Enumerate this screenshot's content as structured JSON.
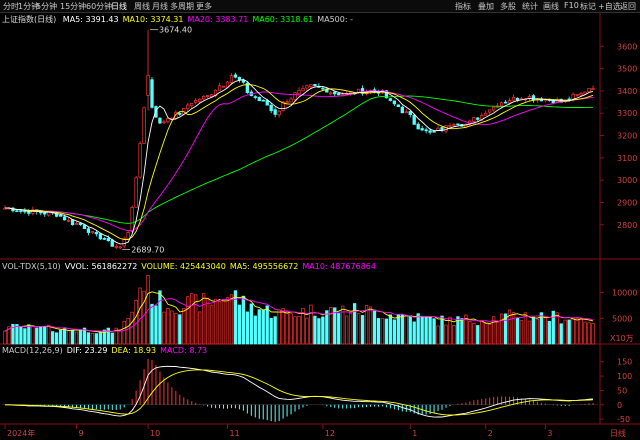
{
  "toolbar": {
    "left": [
      "分时",
      "1分钟",
      "5分钟",
      "15分钟",
      "60分钟",
      "日线",
      "周线",
      "月线",
      "多周期",
      "更多"
    ],
    "active": "日线",
    "right": [
      "指标",
      "叠加",
      "多股",
      "统计",
      "画线",
      "F10",
      "标记",
      "+自选",
      "返回"
    ]
  },
  "main": {
    "title": "上证指数(日线)",
    "ma": [
      {
        "label": "MA5: 3391.43",
        "color": "#ffffff"
      },
      {
        "label": "MA10: 3374.31",
        "color": "#ffff00"
      },
      {
        "label": "MA20: 3383.71",
        "color": "#ff00ff"
      },
      {
        "label": "MA60: 3318.61",
        "color": "#00ff00"
      },
      {
        "label": "MA500: -",
        "color": "#cccccc"
      }
    ],
    "high_label": "3674.40",
    "low_label": "2689.70"
  },
  "vol": {
    "items": [
      {
        "label": "VOL-TDX(5,10)",
        "color": "#cccccc"
      },
      {
        "label": "VVOL: 561862272",
        "color": "#ffffff"
      },
      {
        "label": "VOLUME: 425443040",
        "color": "#ffff00"
      },
      {
        "label": "MA5: 495556672",
        "color": "#ffff00"
      },
      {
        "label": "MA10: 487676864",
        "color": "#ff00ff"
      }
    ],
    "unit": "X10万"
  },
  "macd": {
    "items": [
      {
        "label": "MACD(12,26,9)",
        "color": "#cccccc"
      },
      {
        "label": "DIF: 23.29",
        "color": "#ffffff"
      },
      {
        "label": "DEA: 18.93",
        "color": "#ffff00"
      },
      {
        "label": "MACD: 8.73",
        "color": "#ff00ff"
      }
    ]
  },
  "xaxis": {
    "labels": [
      "2024年",
      "9",
      "10",
      "11",
      "12",
      "1",
      "2",
      "3"
    ],
    "period": "日线"
  },
  "chart_data": {
    "type": "candlestick",
    "title": "上证指数(日线)",
    "price_ticks": [
      2800,
      2900,
      3000,
      3100,
      3200,
      3300,
      3400,
      3500,
      3600
    ],
    "price_ylim": [
      2660,
      3700
    ],
    "volume_ticks": [
      5000,
      10000
    ],
    "volume_ylim": [
      0,
      14000
    ],
    "macd_ticks": [
      -50,
      0,
      50,
      100,
      150
    ],
    "macd_ylim": [
      -60,
      170
    ],
    "high": {
      "value": 3674.4
    },
    "low": {
      "value": 2689.7
    },
    "months": [
      {
        "label": "2024年",
        "start_index": 0
      },
      {
        "label": "9",
        "start_index": 18
      },
      {
        "label": "10",
        "start_index": 36
      },
      {
        "label": "11",
        "start_index": 56
      },
      {
        "label": "12",
        "start_index": 80
      },
      {
        "label": "1",
        "start_index": 102
      },
      {
        "label": "2",
        "start_index": 121
      },
      {
        "label": "3",
        "start_index": 136
      }
    ],
    "anchors": [
      [
        0,
        2875
      ],
      [
        6,
        2860
      ],
      [
        12,
        2850
      ],
      [
        18,
        2805
      ],
      [
        24,
        2745
      ],
      [
        27,
        2710
      ],
      [
        29,
        2700
      ],
      [
        31,
        2770
      ],
      [
        33,
        3000
      ],
      [
        35,
        3330
      ],
      [
        36,
        3450
      ],
      [
        37,
        3330
      ],
      [
        39,
        3250
      ],
      [
        41,
        3280
      ],
      [
        44,
        3300
      ],
      [
        47,
        3350
      ],
      [
        50,
        3370
      ],
      [
        55,
        3430
      ],
      [
        57,
        3470
      ],
      [
        59,
        3445
      ],
      [
        62,
        3380
      ],
      [
        65,
        3350
      ],
      [
        68,
        3300
      ],
      [
        71,
        3360
      ],
      [
        74,
        3395
      ],
      [
        77,
        3420
      ],
      [
        80,
        3410
      ],
      [
        83,
        3390
      ],
      [
        86,
        3385
      ],
      [
        90,
        3400
      ],
      [
        94,
        3400
      ],
      [
        98,
        3340
      ],
      [
        101,
        3300
      ],
      [
        104,
        3240
      ],
      [
        107,
        3210
      ],
      [
        110,
        3230
      ],
      [
        113,
        3260
      ],
      [
        116,
        3250
      ],
      [
        119,
        3280
      ],
      [
        122,
        3320
      ],
      [
        125,
        3350
      ],
      [
        128,
        3365
      ],
      [
        131,
        3375
      ],
      [
        134,
        3365
      ],
      [
        137,
        3360
      ],
      [
        140,
        3350
      ],
      [
        144,
        3380
      ],
      [
        148,
        3420
      ]
    ],
    "volume_anchors": [
      [
        0,
        3200
      ],
      [
        18,
        2800
      ],
      [
        28,
        2500
      ],
      [
        31,
        4500
      ],
      [
        33,
        9000
      ],
      [
        35,
        12500
      ],
      [
        36,
        11000
      ],
      [
        38,
        8500
      ],
      [
        42,
        7500
      ],
      [
        50,
        8000
      ],
      [
        57,
        9500
      ],
      [
        62,
        7000
      ],
      [
        70,
        6000
      ],
      [
        80,
        6500
      ],
      [
        90,
        6500
      ],
      [
        100,
        5500
      ],
      [
        110,
        4500
      ],
      [
        120,
        4800
      ],
      [
        130,
        5500
      ],
      [
        140,
        5200
      ],
      [
        148,
        4800
      ]
    ],
    "series": [
      {
        "name": "MA5",
        "color": "#ffffff"
      },
      {
        "name": "MA10",
        "color": "#ffff00"
      },
      {
        "name": "MA20",
        "color": "#ff00ff"
      },
      {
        "name": "MA60",
        "color": "#00ff00"
      },
      {
        "name": "DIF",
        "color": "#ffffff"
      },
      {
        "name": "DEA",
        "color": "#ffff00"
      },
      {
        "name": "MACD",
        "color": "#ff00ff"
      }
    ],
    "up_color": "#ff3232",
    "down_color": "#54ffff"
  }
}
